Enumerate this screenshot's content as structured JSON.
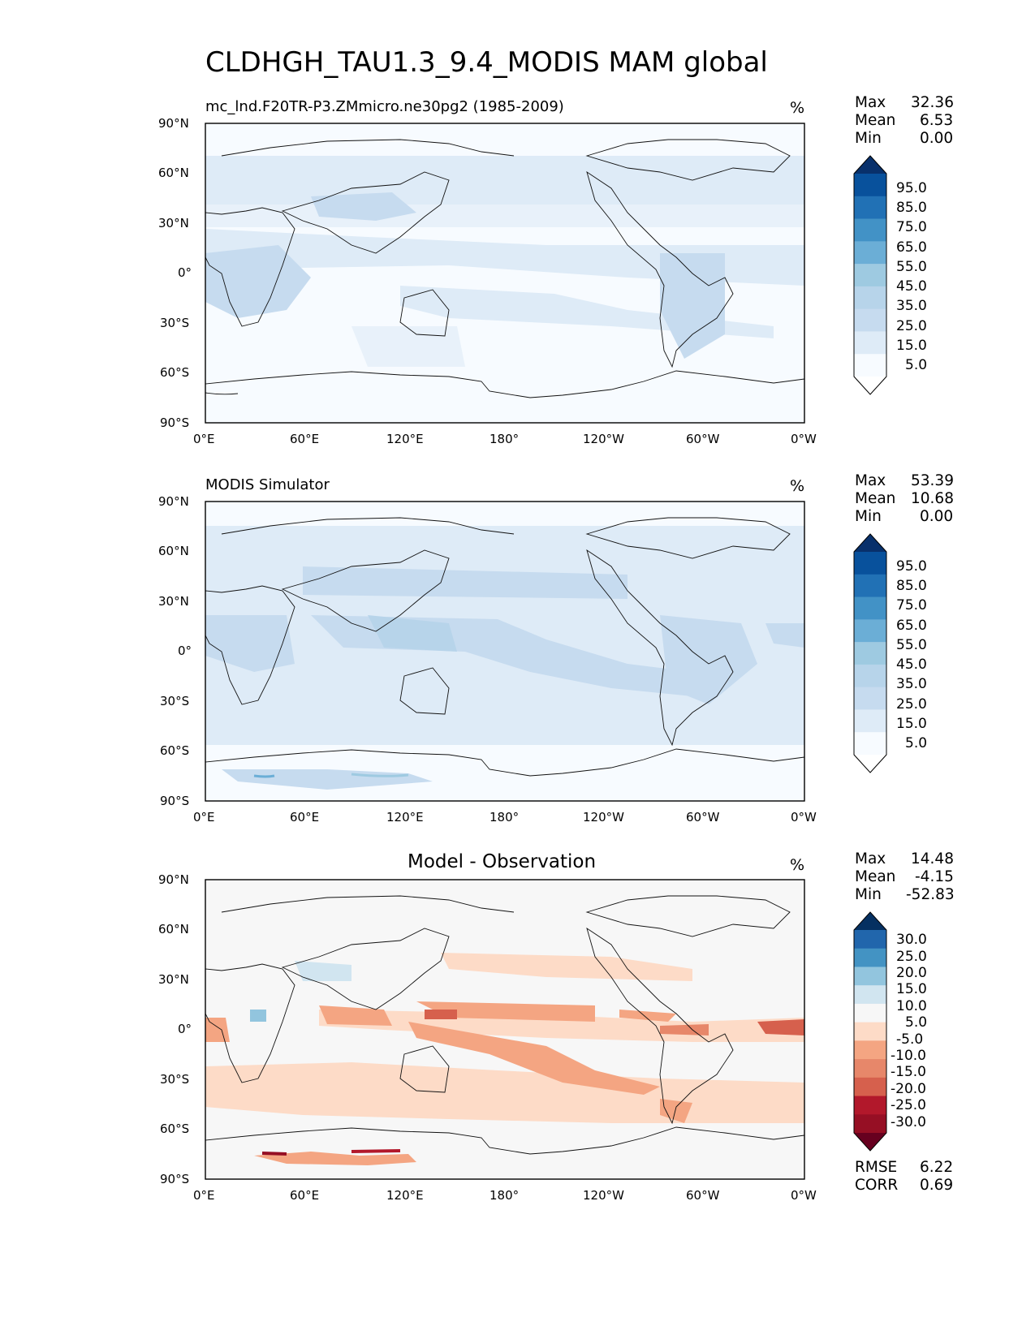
{
  "title": "CLDHGH_TAU1.3_9.4_MODIS MAM global",
  "lat_ticks": [
    "90°N",
    "60°N",
    "30°N",
    "0°",
    "30°S",
    "60°S",
    "90°S"
  ],
  "lon_ticks": [
    "0°E",
    "60°E",
    "120°E",
    "180°",
    "120°W",
    "60°W",
    "0°W"
  ],
  "panels": [
    {
      "id": "model",
      "subtitle": "mc_lnd.F20TR-P3.ZMmicro.ne30pg2 (1985-2009)",
      "unit": "%",
      "stats": [
        {
          "label": "Max",
          "value": "32.36"
        },
        {
          "label": "Mean",
          "value": "6.53"
        },
        {
          "label": "Min",
          "value": "0.00"
        }
      ],
      "colorbar": {
        "levels": [
          "95.0",
          "85.0",
          "75.0",
          "65.0",
          "55.0",
          "45.0",
          "35.0",
          "25.0",
          "15.0",
          "5.0"
        ],
        "colors": [
          "#08306b",
          "#08519c",
          "#2171b5",
          "#4292c6",
          "#6baed6",
          "#9ecae1",
          "#b7d4ea",
          "#c6dbef",
          "#deebf7",
          "#f7fbff",
          "#ffffff"
        ]
      }
    },
    {
      "id": "obs",
      "subtitle": "MODIS Simulator",
      "unit": "%",
      "stats": [
        {
          "label": "Max",
          "value": "53.39"
        },
        {
          "label": "Mean",
          "value": "10.68"
        },
        {
          "label": "Min",
          "value": "0.00"
        }
      ],
      "colorbar": {
        "levels": [
          "95.0",
          "85.0",
          "75.0",
          "65.0",
          "55.0",
          "45.0",
          "35.0",
          "25.0",
          "15.0",
          "5.0"
        ],
        "colors": [
          "#08306b",
          "#08519c",
          "#2171b5",
          "#4292c6",
          "#6baed6",
          "#9ecae1",
          "#b7d4ea",
          "#c6dbef",
          "#deebf7",
          "#f7fbff",
          "#ffffff"
        ]
      }
    },
    {
      "id": "diff",
      "subtitle": "Model - Observation",
      "unit": "%",
      "stats": [
        {
          "label": "Max",
          "value": "14.48"
        },
        {
          "label": "Mean",
          "value": "-4.15"
        },
        {
          "label": "Min",
          "value": "-52.83"
        }
      ],
      "colorbar": {
        "levels": [
          "30.0",
          "25.0",
          "20.0",
          "15.0",
          "10.0",
          "5.0",
          "-5.0",
          "-10.0",
          "-15.0",
          "-20.0",
          "-25.0",
          "-30.0"
        ],
        "colors": [
          "#053061",
          "#2166ac",
          "#4393c3",
          "#92c5de",
          "#d1e5f0",
          "#f7f7f7",
          "#fddbc7",
          "#f4a582",
          "#e7876a",
          "#d6604d",
          "#b2182b",
          "#960f24",
          "#67001f"
        ]
      },
      "footer_stats": [
        {
          "label": "RMSE",
          "value": "6.22"
        },
        {
          "label": "CORR",
          "value": "0.69"
        }
      ]
    }
  ]
}
